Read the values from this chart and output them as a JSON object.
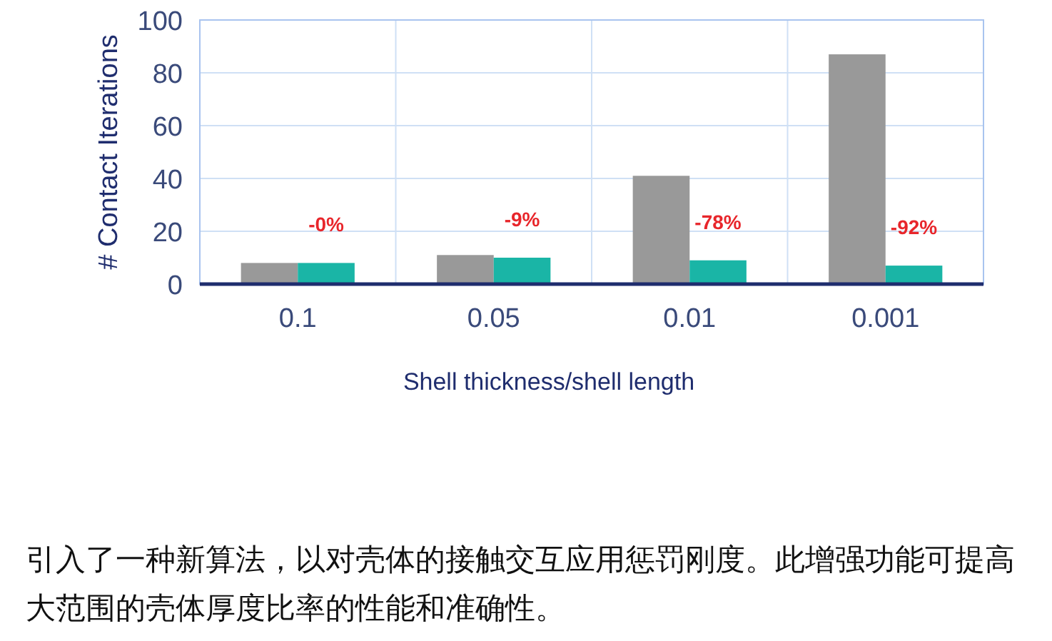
{
  "chart_data": {
    "type": "bar",
    "xlabel": "Shell thickness/shell length",
    "ylabel": "# Contact Iterations",
    "categories": [
      "0.1",
      "0.05",
      "0.01",
      "0.001"
    ],
    "series": [
      {
        "color": "#999999",
        "values": [
          8,
          11,
          41,
          87
        ]
      },
      {
        "color": "#1ab5a6",
        "values": [
          8,
          10,
          9,
          7
        ]
      }
    ],
    "ylim": [
      0,
      100
    ],
    "yticks": [
      0,
      20,
      40,
      60,
      80,
      100
    ],
    "grid": true,
    "annotations": [
      {
        "text": "-0%",
        "x": "0.1",
        "y": 8
      },
      {
        "text": "-9%",
        "x": "0.05",
        "y": 10
      },
      {
        "text": "-78%",
        "x": "0.01",
        "y": 9
      },
      {
        "text": "-92%",
        "x": "0.001",
        "y": 7
      },
      "引入了一种新算法，以对壳体的接触交互应用惩罚刚度。此增强功能可提高大范围的壳体厚度比率的性能和准确性。"
    ]
  }
}
